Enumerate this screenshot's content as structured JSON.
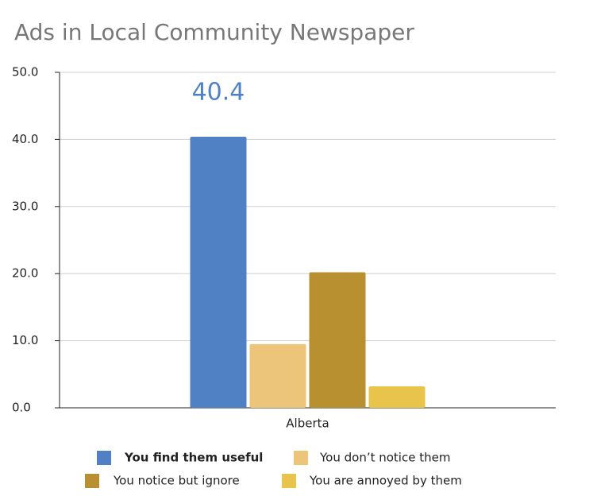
{
  "chart_data": {
    "type": "bar",
    "title": "Ads in Local Community Newspaper",
    "categories": [
      "Alberta"
    ],
    "series": [
      {
        "name": "You find them useful",
        "color": "#4f81c4",
        "values": [
          40.4
        ],
        "value_labels": [
          "40.4"
        ]
      },
      {
        "name": "You don’t notice them",
        "color": "#ecc57a",
        "values": [
          9.5
        ]
      },
      {
        "name": "You notice but ignore",
        "color": "#b8902f",
        "values": [
          20.2
        ]
      },
      {
        "name": "You are annoyed by them",
        "color": "#e8c54a",
        "values": [
          3.2
        ]
      }
    ],
    "ylim": [
      0,
      50
    ],
    "yticks": [
      {
        "value": 0,
        "label": "0.0"
      },
      {
        "value": 10,
        "label": "10.0"
      },
      {
        "value": 20,
        "label": "20.0"
      },
      {
        "value": 30,
        "label": "30.0"
      },
      {
        "value": 40,
        "label": "40.0"
      },
      {
        "value": 50,
        "label": "50.0"
      }
    ],
    "grid": true
  }
}
